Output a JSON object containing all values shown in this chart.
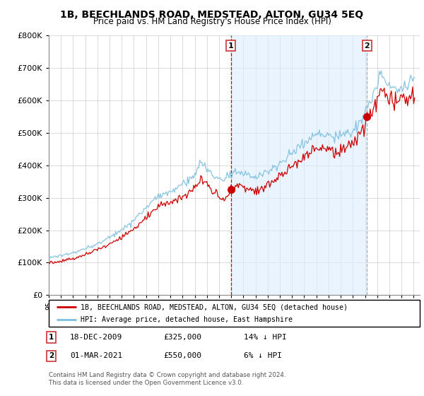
{
  "title": "1B, BEECHLANDS ROAD, MEDSTEAD, ALTON, GU34 5EQ",
  "subtitle": "Price paid vs. HM Land Registry's House Price Index (HPI)",
  "yticks": [
    0,
    100000,
    200000,
    300000,
    400000,
    500000,
    600000,
    700000,
    800000
  ],
  "ytick_labels": [
    "£0",
    "£100K",
    "£200K",
    "£300K",
    "£400K",
    "£500K",
    "£600K",
    "£700K",
    "£800K"
  ],
  "sale1": {
    "date_num": 2009.96,
    "price": 325000,
    "label": "1"
  },
  "sale2": {
    "date_num": 2021.17,
    "price": 550000,
    "label": "2"
  },
  "legend1": "1B, BEECHLANDS ROAD, MEDSTEAD, ALTON, GU34 5EQ (detached house)",
  "legend2": "HPI: Average price, detached house, East Hampshire",
  "hpi_color": "#7bbfdf",
  "price_color": "#cc0000",
  "shade_color": "#ddeeff",
  "grid_color": "#cccccc",
  "vline1_color": "#cc0000",
  "vline2_color": "#aaaaaa",
  "bg_color": "#ffffff",
  "xmin": 1995,
  "xmax": 2025.5,
  "ymin": 0,
  "ymax": 800000,
  "title_fontsize": 10,
  "subtitle_fontsize": 8.5,
  "footer": "Contains HM Land Registry data © Crown copyright and database right 2024.\nThis data is licensed under the Open Government Licence v3.0."
}
